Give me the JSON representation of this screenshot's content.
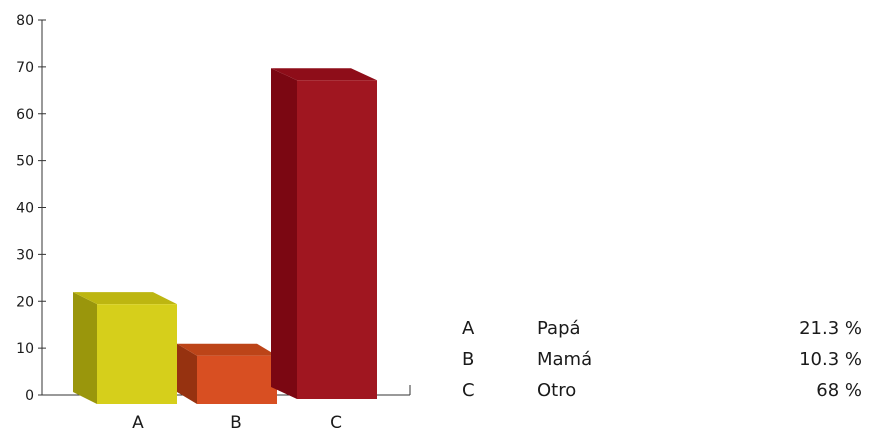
{
  "chart_data": {
    "type": "bar",
    "categories": [
      "A",
      "B",
      "C"
    ],
    "values": [
      21.3,
      10.3,
      68
    ],
    "ylim": [
      0,
      80
    ],
    "yticks": [
      0,
      10,
      20,
      30,
      40,
      50,
      60,
      70,
      80
    ],
    "grid": false,
    "colors": {
      "A": {
        "front": "#d6cf1b",
        "side": "#9a960c",
        "top": "#bdb611"
      },
      "B": {
        "front": "#d84f22",
        "side": "#963210",
        "top": "#bc4418"
      },
      "C": {
        "front": "#a01620",
        "side": "#7b0712",
        "top": "#8e0d19"
      }
    }
  },
  "legend": {
    "rows": [
      {
        "key": "A",
        "name": "Papá",
        "percent": "21.3 %"
      },
      {
        "key": "B",
        "name": "Mamá",
        "percent": "10.3 %"
      },
      {
        "key": "C",
        "name": "Otro",
        "percent": "68 %"
      }
    ]
  }
}
